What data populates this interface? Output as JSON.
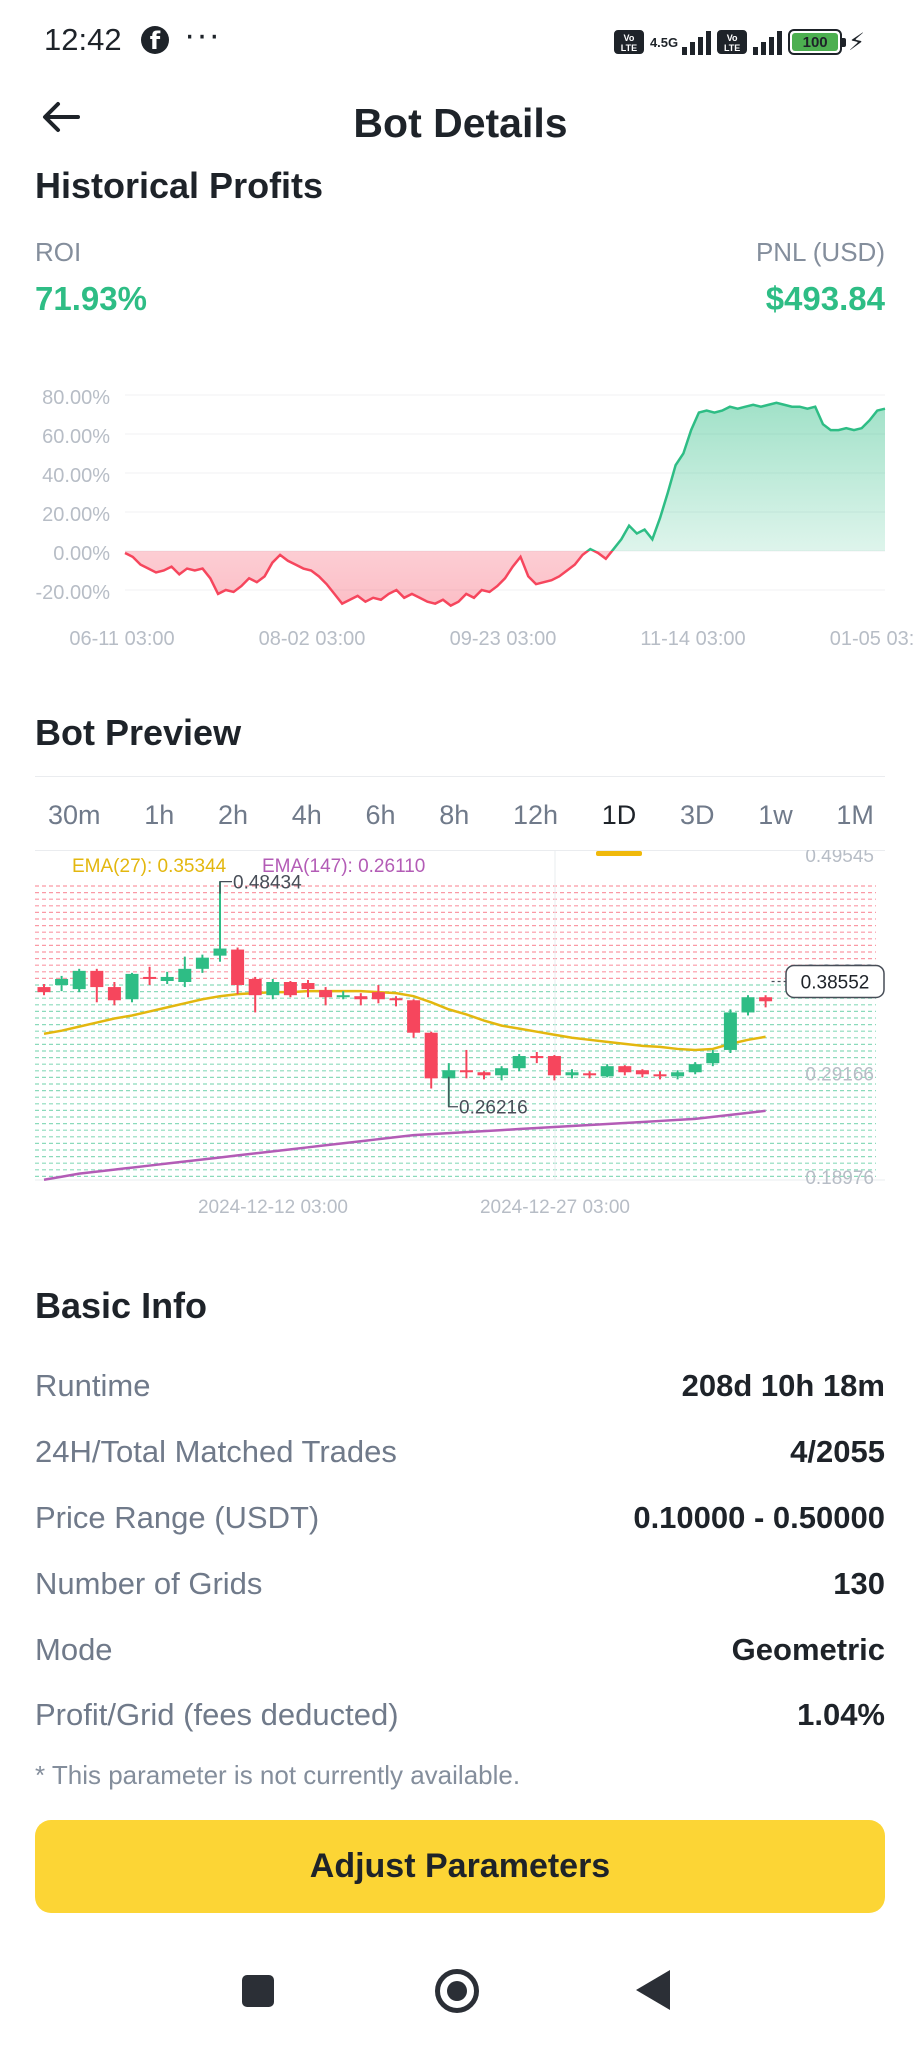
{
  "status_bar": {
    "time": "12:42",
    "dots": "···",
    "network": "4.5G",
    "volte": "Vo LTE",
    "battery": "100",
    "icons": [
      "facebook-icon",
      "more-icon",
      "volte-icon",
      "signal-icon",
      "battery-icon",
      "charging-icon"
    ]
  },
  "header": {
    "title": "Bot Details",
    "back_icon": "arrow-left-icon"
  },
  "historical": {
    "title": "Historical Profits",
    "roi_label": "ROI",
    "roi_value": "71.93%",
    "pnl_label": "PNL (USD)",
    "pnl_value": "$493.84"
  },
  "chart_data": [
    {
      "type": "area",
      "y_ticks": [
        "80.00%",
        "60.00%",
        "40.00%",
        "20.00%",
        "0.00%",
        "-20.00%"
      ],
      "x_ticks": [
        "06-11 03:00",
        "08-02 03:00",
        "09-23 03:00",
        "11-14 03:00",
        "01-05 03:"
      ],
      "ylim": [
        -20,
        80
      ],
      "colors": {
        "positive": "#2ebd85",
        "negative": "#f6465d"
      },
      "y": [
        -1,
        -3,
        -7,
        -9,
        -11,
        -10,
        -8,
        -12,
        -9,
        -10,
        -9,
        -14,
        -22,
        -20,
        -21,
        -18,
        -14,
        -16,
        -13,
        -6,
        -2,
        -5,
        -7,
        -9,
        -10,
        -13,
        -17,
        -22,
        -27,
        -25,
        -23,
        -26,
        -24,
        -25,
        -22,
        -20,
        -24,
        -22,
        -24,
        -26,
        -27,
        -25,
        -28,
        -26,
        -22,
        -24,
        -20,
        -21,
        -18,
        -14,
        -8,
        -3,
        -13,
        -17,
        -16,
        -15,
        -13,
        -10,
        -7,
        -2,
        1,
        -1,
        -4,
        1,
        6,
        13,
        9,
        11,
        6,
        17,
        30,
        44,
        50,
        62,
        71,
        72,
        71,
        72,
        74,
        73,
        74,
        75,
        74,
        75,
        76,
        75,
        74,
        74,
        73,
        74,
        65,
        62,
        62,
        63,
        62,
        63,
        67,
        72,
        73
      ]
    },
    {
      "type": "candlestick",
      "title": "Bot Preview",
      "ema27_label": "EMA(27): 0.35344",
      "ema147_label": "EMA(147): 0.26110",
      "ylim": [
        0.18976,
        0.49545
      ],
      "y_ticks": [
        "0.49545",
        "0.39356",
        "0.29166",
        "0.18976"
      ],
      "x_ticks": [
        "2024-12-12 03:00",
        "2024-12-27 03:00"
      ],
      "current_price": "0.38552",
      "high_label": "0.48434",
      "low_label": "0.26216",
      "colors": {
        "up": "#2ebd85",
        "down": "#f6465d",
        "ema27": "#e3b70f",
        "ema147": "#b35cb6"
      },
      "candles": [
        [
          0.38,
          0.375,
          0.372,
          0.383
        ],
        [
          0.382,
          0.388,
          0.376,
          0.391
        ],
        [
          0.378,
          0.396,
          0.375,
          0.398
        ],
        [
          0.396,
          0.38,
          0.365,
          0.398
        ],
        [
          0.38,
          0.367,
          0.362,
          0.385
        ],
        [
          0.368,
          0.393,
          0.365,
          0.394
        ],
        [
          0.39,
          0.388,
          0.382,
          0.4
        ],
        [
          0.386,
          0.39,
          0.383,
          0.395
        ],
        [
          0.385,
          0.398,
          0.38,
          0.41
        ],
        [
          0.398,
          0.409,
          0.394,
          0.412
        ],
        [
          0.411,
          0.418,
          0.405,
          0.484
        ],
        [
          0.417,
          0.382,
          0.373,
          0.419
        ],
        [
          0.388,
          0.372,
          0.355,
          0.39
        ],
        [
          0.372,
          0.385,
          0.368,
          0.388
        ],
        [
          0.385,
          0.372,
          0.37,
          0.386
        ],
        [
          0.384,
          0.378,
          0.37,
          0.387
        ],
        [
          0.377,
          0.37,
          0.362,
          0.38
        ],
        [
          0.37,
          0.372,
          0.368,
          0.376
        ],
        [
          0.371,
          0.368,
          0.362,
          0.374
        ],
        [
          0.375,
          0.368,
          0.364,
          0.382
        ],
        [
          0.369,
          0.367,
          0.361,
          0.371
        ],
        [
          0.367,
          0.335,
          0.33,
          0.368
        ],
        [
          0.335,
          0.29,
          0.28,
          0.336
        ],
        [
          0.29,
          0.298,
          0.262,
          0.305
        ],
        [
          0.298,
          0.296,
          0.29,
          0.318
        ],
        [
          0.296,
          0.293,
          0.289,
          0.297
        ],
        [
          0.293,
          0.3,
          0.288,
          0.302
        ],
        [
          0.3,
          0.312,
          0.297,
          0.314
        ],
        [
          0.312,
          0.31,
          0.305,
          0.316
        ],
        [
          0.312,
          0.293,
          0.288,
          0.313
        ],
        [
          0.293,
          0.296,
          0.29,
          0.299
        ],
        [
          0.295,
          0.293,
          0.29,
          0.297
        ],
        [
          0.292,
          0.302,
          0.291,
          0.304
        ],
        [
          0.302,
          0.296,
          0.293,
          0.303
        ],
        [
          0.298,
          0.294,
          0.291,
          0.299
        ],
        [
          0.294,
          0.292,
          0.289,
          0.297
        ],
        [
          0.292,
          0.296,
          0.289,
          0.298
        ],
        [
          0.296,
          0.304,
          0.294,
          0.306
        ],
        [
          0.305,
          0.315,
          0.302,
          0.318
        ],
        [
          0.318,
          0.355,
          0.315,
          0.358
        ],
        [
          0.355,
          0.37,
          0.352,
          0.372
        ],
        [
          0.37,
          0.366,
          0.36,
          0.372
        ]
      ],
      "ema27": [
        0.334,
        0.337,
        0.341,
        0.345,
        0.349,
        0.352,
        0.356,
        0.36,
        0.364,
        0.368,
        0.371,
        0.373,
        0.374,
        0.375,
        0.375,
        0.376,
        0.376,
        0.376,
        0.376,
        0.375,
        0.374,
        0.371,
        0.365,
        0.358,
        0.353,
        0.347,
        0.342,
        0.339,
        0.336,
        0.333,
        0.33,
        0.328,
        0.326,
        0.324,
        0.322,
        0.321,
        0.319,
        0.318,
        0.319,
        0.324,
        0.328,
        0.331
      ],
      "ema147": [
        0.19,
        0.193,
        0.196,
        0.198,
        0.2,
        0.202,
        0.204,
        0.206,
        0.208,
        0.21,
        0.212,
        0.214,
        0.216,
        0.218,
        0.22,
        0.222,
        0.224,
        0.226,
        0.228,
        0.23,
        0.232,
        0.234,
        0.235,
        0.236,
        0.237,
        0.238,
        0.239,
        0.24,
        0.241,
        0.242,
        0.243,
        0.244,
        0.245,
        0.246,
        0.247,
        0.248,
        0.249,
        0.25,
        0.252,
        0.254,
        0.256,
        0.258
      ]
    }
  ],
  "bot_preview": {
    "title": "Bot Preview",
    "tabs": [
      "30m",
      "1h",
      "2h",
      "4h",
      "6h",
      "8h",
      "12h",
      "1D",
      "3D",
      "1w",
      "1M"
    ],
    "active_tab": "1D"
  },
  "basic_info": {
    "title": "Basic Info",
    "rows": [
      {
        "label": "Runtime",
        "value": "208d 10h 18m"
      },
      {
        "label": "24H/Total Matched Trades",
        "value": "4/2055"
      },
      {
        "label": "Price Range (USDT)",
        "value": "0.10000 - 0.50000"
      },
      {
        "label": "Number of Grids",
        "value": "130"
      },
      {
        "label": "Mode",
        "value": "Geometric"
      },
      {
        "label": "Profit/Grid (fees deducted)",
        "value": "1.04%"
      }
    ],
    "note": "* This parameter is not currently available."
  },
  "action": {
    "adjust_label": "Adjust Parameters"
  },
  "nav_icons": [
    "recent-apps-icon",
    "home-icon",
    "back-icon"
  ]
}
